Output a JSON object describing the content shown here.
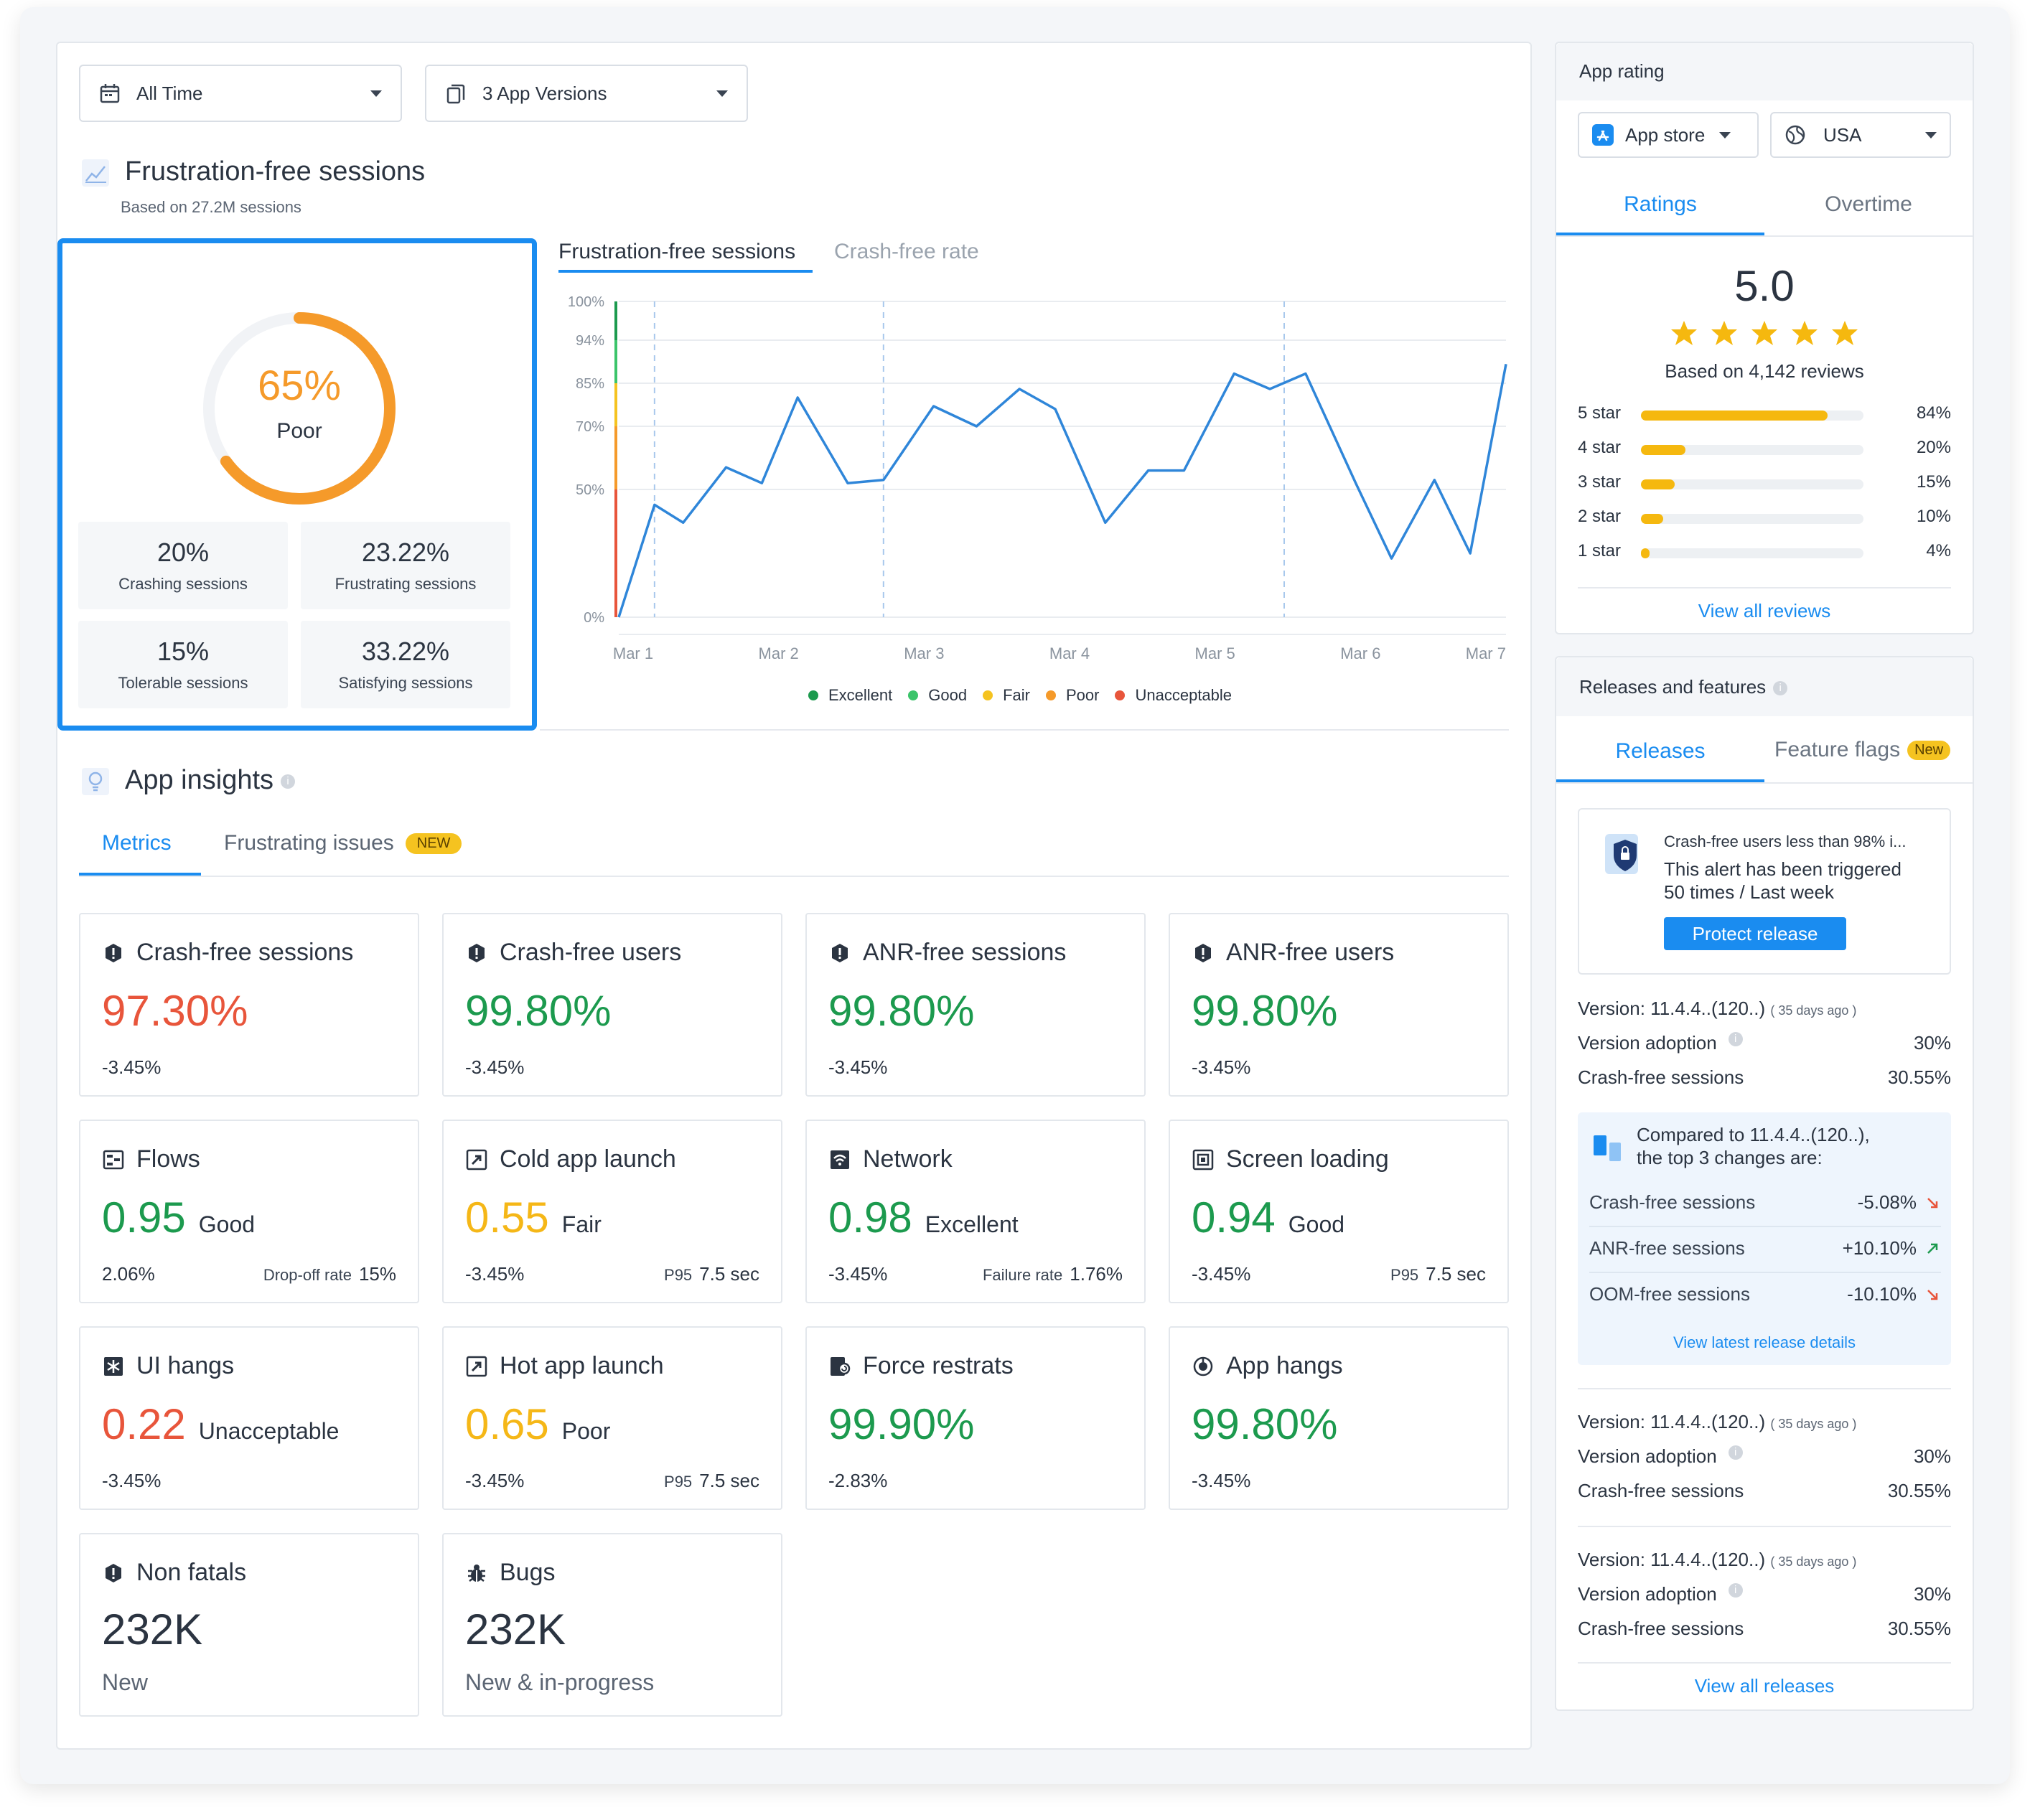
{
  "filters": {
    "time": "All Time",
    "versions": "3 App Versions"
  },
  "frustration": {
    "title": "Frustration-free sessions",
    "subtitle": "Based on 27.2M sessions",
    "score": "65%",
    "score_label": "Poor",
    "score_fraction": 0.65,
    "stats": [
      {
        "value": "20%",
        "label": "Crashing sessions"
      },
      {
        "value": "23.22%",
        "label": "Frustrating sessions"
      },
      {
        "value": "15%",
        "label": "Tolerable sessions"
      },
      {
        "value": "33.22%",
        "label": "Satisfying sessions"
      }
    ],
    "tabs": [
      "Frustration-free sessions",
      "Crash-free rate"
    ]
  },
  "chart_data": {
    "type": "line",
    "y_ticks": [
      "100%",
      "94%",
      "85%",
      "70%",
      "50%",
      "0%"
    ],
    "y_tick_values": [
      100,
      94,
      85,
      70,
      50,
      0
    ],
    "x_ticks": [
      "Mar 1",
      "Mar 2",
      "Mar 3",
      "Mar 4",
      "Mar 5",
      "Mar 6",
      "Mar 7"
    ],
    "x": [
      0,
      0.25,
      0.45,
      0.75,
      1.0,
      1.25,
      1.6,
      1.85,
      2.2,
      2.5,
      2.8,
      3.05,
      3.4,
      3.7,
      3.95,
      4.3,
      4.55,
      4.8,
      5.15,
      5.4,
      5.7,
      5.95,
      6.2
    ],
    "values": [
      0,
      44,
      37,
      57,
      52,
      80,
      52,
      53,
      77,
      70,
      83,
      76,
      37,
      56,
      56,
      87,
      83,
      87,
      52,
      23,
      53,
      25,
      89
    ],
    "ylim": [
      0,
      100
    ],
    "grid": true,
    "legend": [
      {
        "name": "Excellent",
        "color": "#1c9a4e"
      },
      {
        "name": "Good",
        "color": "#3bc46a"
      },
      {
        "name": "Fair",
        "color": "#f5c320"
      },
      {
        "name": "Poor",
        "color": "#f59a2a"
      },
      {
        "name": "Unacceptable",
        "color": "#e8553b"
      }
    ],
    "legend_position": "bottom"
  },
  "insights": {
    "title": "App insights",
    "tabs": {
      "metrics": "Metrics",
      "issues": "Frustrating issues",
      "issues_badge": "NEW"
    },
    "cards": [
      {
        "title": "Crash-free sessions",
        "icon": "alert-icon",
        "value": "97.30%",
        "color": "red",
        "qual": "",
        "delta": "-3.45%",
        "rlabel": "",
        "rvalue": ""
      },
      {
        "title": "Crash-free users",
        "icon": "alert-icon",
        "value": "99.80%",
        "color": "green",
        "qual": "",
        "delta": "-3.45%",
        "rlabel": "",
        "rvalue": ""
      },
      {
        "title": "ANR-free sessions",
        "icon": "alert-icon",
        "value": "99.80%",
        "color": "green",
        "qual": "",
        "delta": "-3.45%",
        "rlabel": "",
        "rvalue": ""
      },
      {
        "title": "ANR-free users",
        "icon": "alert-icon",
        "value": "99.80%",
        "color": "green",
        "qual": "",
        "delta": "-3.45%",
        "rlabel": "",
        "rvalue": ""
      },
      {
        "title": "Flows",
        "icon": "flows-icon",
        "value": "0.95",
        "color": "green",
        "qual": "Good",
        "delta": "2.06%",
        "rlabel": "Drop-off rate",
        "rvalue": "15%"
      },
      {
        "title": "Cold app launch",
        "icon": "launch-icon",
        "value": "0.55",
        "color": "yellow",
        "qual": "Fair",
        "delta": "-3.45%",
        "rlabel": "P95",
        "rvalue": "7.5 sec"
      },
      {
        "title": "Network",
        "icon": "network-icon",
        "value": "0.98",
        "color": "green",
        "qual": "Excellent",
        "delta": "-3.45%",
        "rlabel": "Failure rate",
        "rvalue": "1.76%"
      },
      {
        "title": "Screen loading",
        "icon": "screen-icon",
        "value": "0.94",
        "color": "green",
        "qual": "Good",
        "delta": "-3.45%",
        "rlabel": "P95",
        "rvalue": "7.5 sec"
      },
      {
        "title": "UI hangs",
        "icon": "freeze-icon",
        "value": "0.22",
        "color": "red",
        "qual": "Unacceptable",
        "delta": "-3.45%",
        "rlabel": "",
        "rvalue": ""
      },
      {
        "title": "Hot app launch",
        "icon": "launch-icon",
        "value": "0.65",
        "color": "yellow",
        "qual": "Poor",
        "delta": "-3.45%",
        "rlabel": "P95",
        "rvalue": "7.5 sec"
      },
      {
        "title": "Force restrats",
        "icon": "restart-icon",
        "value": "99.90%",
        "color": "green",
        "qual": "",
        "delta": "-2.83%",
        "rlabel": "",
        "rvalue": ""
      },
      {
        "title": "App hangs",
        "icon": "hang-icon",
        "value": "99.80%",
        "color": "green",
        "qual": "",
        "delta": "-3.45%",
        "rlabel": "",
        "rvalue": ""
      },
      {
        "title": "Non fatals",
        "icon": "alert-icon",
        "value": "232K",
        "color": "dark",
        "qual": "",
        "delta": "New",
        "rlabel": "",
        "rvalue": ""
      },
      {
        "title": "Bugs",
        "icon": "bug-icon",
        "value": "232K",
        "color": "dark",
        "qual": "",
        "delta": "New & in-progress",
        "rlabel": "",
        "rvalue": ""
      }
    ]
  },
  "rating": {
    "title": "App rating",
    "store": "App store",
    "country": "USA",
    "tabs": [
      "Ratings",
      "Overtime"
    ],
    "score": "5.0",
    "stars": 5,
    "based_on": "Based on 4,142 reviews",
    "rows": [
      {
        "label": "5 star",
        "pct": "84%",
        "fraction": 0.84
      },
      {
        "label": "4 star",
        "pct": "20%",
        "fraction": 0.2
      },
      {
        "label": "3 star",
        "pct": "15%",
        "fraction": 0.15
      },
      {
        "label": "2 star",
        "pct": "10%",
        "fraction": 0.1
      },
      {
        "label": "1 star",
        "pct": "4%",
        "fraction": 0.04
      }
    ],
    "view_all": "View all reviews"
  },
  "releases": {
    "title": "Releases and features",
    "tabs": {
      "releases": "Releases",
      "flags": "Feature flags",
      "flags_badge": "New"
    },
    "alert": {
      "title": "Crash-free users less than 98% i...",
      "body1": "This alert has been triggered",
      "body2": "50 times / Last week",
      "button": "Protect release"
    },
    "versions": [
      {
        "version": "Version: 11.4.4..(120..)",
        "ago": "( 35 days ago )",
        "adoption_label": "Version adoption",
        "adoption": "30%",
        "cfs_label": "Crash-free sessions",
        "cfs": "30.55%"
      },
      {
        "version": "Version: 11.4.4..(120..)",
        "ago": "( 35 days ago )",
        "adoption_label": "Version adoption",
        "adoption": "30%",
        "cfs_label": "Crash-free sessions",
        "cfs": "30.55%"
      },
      {
        "version": "Version: 11.4.4..(120..)",
        "ago": "( 35 days ago )",
        "adoption_label": "Version adoption",
        "adoption": "30%",
        "cfs_label": "Crash-free sessions",
        "cfs": "30.55%"
      }
    ],
    "compare": {
      "prefix": "Compared to ",
      "version": "11.4.4..(120..),",
      "line2": "the top 3 changes are:",
      "rows": [
        {
          "label": "Crash-free sessions",
          "value": "-5.08%",
          "dir": "down"
        },
        {
          "label": "ANR-free sessions",
          "value": "+10.10%",
          "dir": "up"
        },
        {
          "label": "OOM-free sessions",
          "value": "-10.10%",
          "dir": "down"
        }
      ],
      "link": "View latest release details"
    },
    "view_all": "View all releases"
  }
}
